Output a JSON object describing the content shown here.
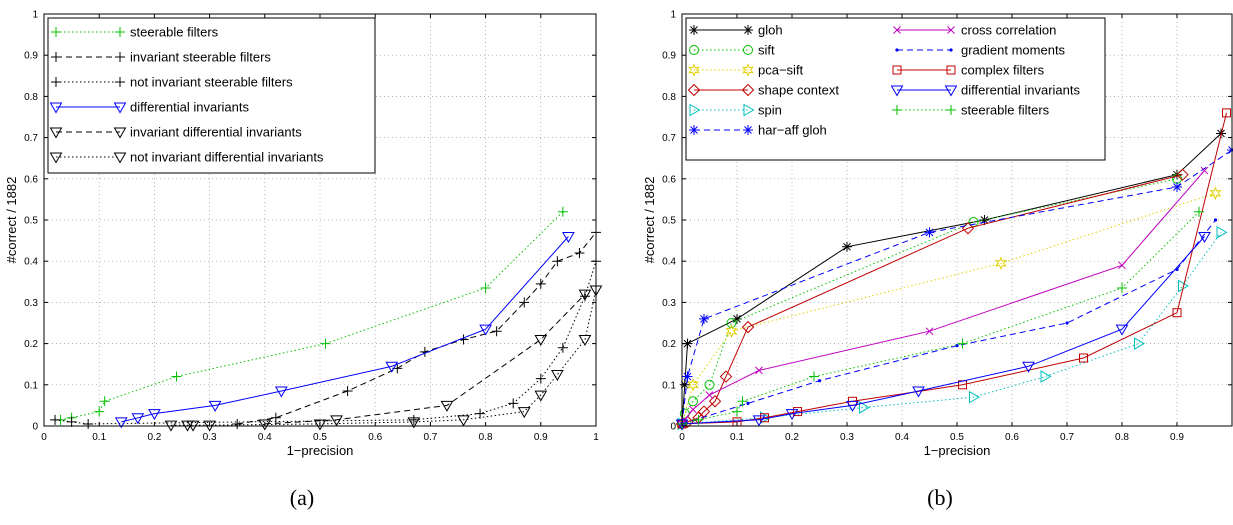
{
  "captions": [
    "(a)",
    "(b)"
  ],
  "chart_data": [
    {
      "type": "line",
      "caption": "(a)",
      "xlabel": "1−precision",
      "ylabel": "#correct / 1882",
      "xlim": [
        0,
        1
      ],
      "ylim": [
        0,
        1
      ],
      "xticks": [
        "0",
        "0.1",
        "0.2",
        "0.3",
        "0.4",
        "0.5",
        "0.6",
        "0.7",
        "0.8",
        "0.9",
        "1"
      ],
      "yticks": [
        "0",
        "0.1",
        "0.2",
        "0.3",
        "0.4",
        "0.5",
        "0.6",
        "0.7",
        "0.8",
        "0.9",
        "1"
      ],
      "grid": true,
      "legend": "top-left",
      "series": [
        {
          "name": "steerable filters",
          "color": "#00c000",
          "dash": "dotted",
          "marker": "plus",
          "x": [
            0.03,
            0.05,
            0.1,
            0.11,
            0.24,
            0.51,
            0.8,
            0.94
          ],
          "y": [
            0.015,
            0.02,
            0.035,
            0.06,
            0.12,
            0.2,
            0.335,
            0.52
          ]
        },
        {
          "name": "invariant steerable filters",
          "color": "#000000",
          "dash": "dashed",
          "marker": "plus",
          "x": [
            0.35,
            0.42,
            0.55,
            0.64,
            0.69,
            0.76,
            0.82,
            0.87,
            0.9,
            0.93,
            0.97,
            1.0
          ],
          "y": [
            0.005,
            0.02,
            0.085,
            0.14,
            0.18,
            0.21,
            0.23,
            0.3,
            0.345,
            0.4,
            0.42,
            0.47
          ]
        },
        {
          "name": "not invariant steerable filters",
          "color": "#000000",
          "dash": "dotted",
          "marker": "plus",
          "x": [
            0.02,
            0.05,
            0.08,
            0.67,
            0.79,
            0.85,
            0.9,
            0.94,
            0.98,
            1.0
          ],
          "y": [
            0.015,
            0.01,
            0.005,
            0.015,
            0.03,
            0.055,
            0.115,
            0.19,
            0.315,
            0.4
          ]
        },
        {
          "name": "differential invariants",
          "color": "#0000ff",
          "dash": "solid",
          "marker": "triangle",
          "x": [
            0.14,
            0.17,
            0.2,
            0.31,
            0.43,
            0.63,
            0.8,
            0.95
          ],
          "y": [
            0.01,
            0.02,
            0.03,
            0.05,
            0.085,
            0.145,
            0.235,
            0.46
          ]
        },
        {
          "name": "invariant differential invariants",
          "color": "#000000",
          "dash": "dashed",
          "marker": "triangle",
          "x": [
            0.4,
            0.53,
            0.73,
            0.9,
            0.98
          ],
          "y": [
            0.005,
            0.015,
            0.05,
            0.21,
            0.32
          ]
        },
        {
          "name": "not invariant differential invariants",
          "color": "#000000",
          "dash": "dotted",
          "marker": "triangle",
          "x": [
            0.23,
            0.26,
            0.27,
            0.3,
            0.5,
            0.67,
            0.76,
            0.87,
            0.9,
            0.93,
            0.98,
            1.0
          ],
          "y": [
            0.002,
            0.002,
            0.002,
            0.002,
            0.005,
            0.01,
            0.015,
            0.035,
            0.075,
            0.125,
            0.21,
            0.33
          ]
        }
      ]
    },
    {
      "type": "line",
      "caption": "(b)",
      "xlabel": "1−precision",
      "ylabel": "#correct / 1882",
      "xlim": [
        0,
        1
      ],
      "ylim": [
        0,
        1
      ],
      "xticks": [
        "0",
        "0.1",
        "0.2",
        "0.3",
        "0.4",
        "0.5",
        "0.6",
        "0.7",
        "0.8",
        "0.9"
      ],
      "yticks": [
        "0",
        "0.1",
        "0.2",
        "0.3",
        "0.4",
        "0.5",
        "0.6",
        "0.7",
        "0.8",
        "0.9",
        "1"
      ],
      "grid": true,
      "legend": "top-left",
      "series": [
        {
          "name": "gloh",
          "color": "#000000",
          "dash": "solid",
          "marker": "star",
          "x": [
            0.0,
            0.005,
            0.01,
            0.1,
            0.3,
            0.55,
            0.9,
            0.98
          ],
          "y": [
            0.005,
            0.1,
            0.2,
            0.26,
            0.435,
            0.5,
            0.61,
            0.71
          ]
        },
        {
          "name": "sift",
          "color": "#00c000",
          "dash": "dotted",
          "marker": "circle",
          "x": [
            0.0,
            0.005,
            0.02,
            0.05,
            0.09,
            0.53,
            0.9
          ],
          "y": [
            0.005,
            0.03,
            0.06,
            0.1,
            0.25,
            0.495,
            0.6
          ]
        },
        {
          "name": "pca−sift",
          "color": "#e0d000",
          "dash": "dotted",
          "marker": "hexstar",
          "x": [
            0.0,
            0.02,
            0.09,
            0.58,
            0.97
          ],
          "y": [
            0.005,
            0.1,
            0.23,
            0.395,
            0.565
          ]
        },
        {
          "name": "shape context",
          "color": "#c00000",
          "dash": "solid",
          "marker": "diamond",
          "x": [
            0.0,
            0.01,
            0.03,
            0.04,
            0.06,
            0.08,
            0.12,
            0.52,
            0.91
          ],
          "y": [
            0.005,
            0.01,
            0.02,
            0.035,
            0.06,
            0.12,
            0.24,
            0.48,
            0.61
          ]
        },
        {
          "name": "spin",
          "color": "#00c0c0",
          "dash": "dotted",
          "marker": "triangle-right",
          "x": [
            0.0,
            0.15,
            0.33,
            0.53,
            0.66,
            0.83,
            0.91,
            0.98
          ],
          "y": [
            0.005,
            0.02,
            0.045,
            0.07,
            0.12,
            0.2,
            0.34,
            0.47
          ]
        },
        {
          "name": "har−aff gloh",
          "color": "#0000ff",
          "dash": "dashed",
          "marker": "asterisk",
          "x": [
            0.0,
            0.01,
            0.04,
            0.45,
            0.9,
            1.0
          ],
          "y": [
            0.005,
            0.12,
            0.26,
            0.47,
            0.58,
            0.67
          ]
        },
        {
          "name": "cross correlation",
          "color": "#c000c0",
          "dash": "solid",
          "marker": "cross",
          "x": [
            0.0,
            0.005,
            0.02,
            0.05,
            0.14,
            0.45,
            0.8,
            0.95
          ],
          "y": [
            0.005,
            0.015,
            0.04,
            0.075,
            0.135,
            0.23,
            0.39,
            0.62
          ]
        },
        {
          "name": "gradient moments",
          "color": "#0000ff",
          "dash": "dashed",
          "marker": "dot",
          "x": [
            0.0,
            0.12,
            0.25,
            0.5,
            0.7,
            0.9,
            0.97
          ],
          "y": [
            0.005,
            0.055,
            0.11,
            0.195,
            0.25,
            0.38,
            0.5
          ]
        },
        {
          "name": "complex filters",
          "color": "#c00000",
          "dash": "solid",
          "marker": "square",
          "x": [
            0.0,
            0.1,
            0.15,
            0.21,
            0.31,
            0.51,
            0.73,
            0.9,
            0.99
          ],
          "y": [
            0.005,
            0.01,
            0.02,
            0.035,
            0.06,
            0.1,
            0.165,
            0.275,
            0.76
          ]
        },
        {
          "name": "differential invariants",
          "color": "#0000ff",
          "dash": "solid",
          "marker": "triangle",
          "x": [
            0.0,
            0.14,
            0.2,
            0.31,
            0.43,
            0.63,
            0.8,
            0.95
          ],
          "y": [
            0.005,
            0.015,
            0.03,
            0.05,
            0.085,
            0.145,
            0.235,
            0.46
          ]
        },
        {
          "name": "steerable filters",
          "color": "#00c000",
          "dash": "dotted",
          "marker": "plus",
          "x": [
            0.0,
            0.03,
            0.1,
            0.11,
            0.24,
            0.51,
            0.8,
            0.94
          ],
          "y": [
            0.005,
            0.015,
            0.035,
            0.06,
            0.12,
            0.2,
            0.335,
            0.52
          ]
        }
      ]
    }
  ]
}
